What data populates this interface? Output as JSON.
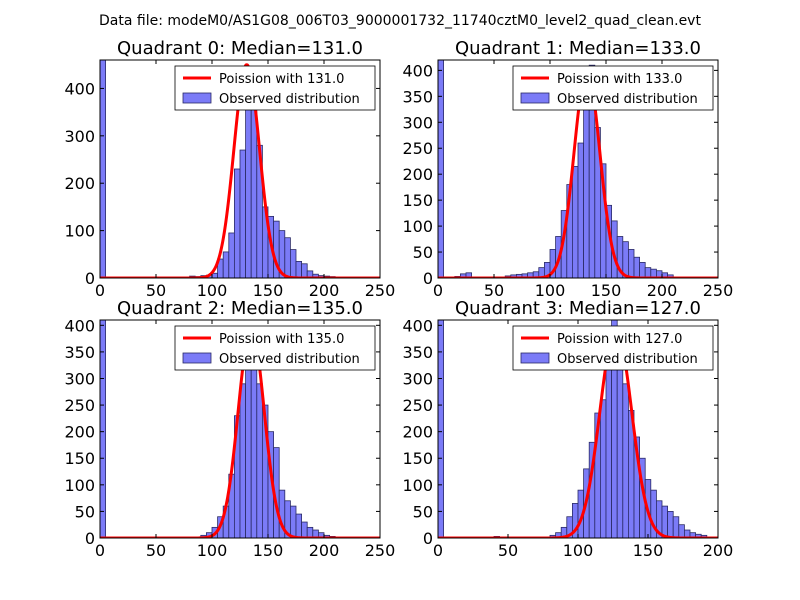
{
  "figure_title": "Data file: modeM0/AS1G08_006T03_9000001732_11740cztM0_level2_quad_clean.evt",
  "colors": {
    "bar_fill": "#7b7bf7",
    "bar_edge": "#2a2a66",
    "curve": "#ff0000",
    "background": "#ffffff"
  },
  "chart_data": [
    {
      "type": "bar",
      "title": "Quadrant 0: Median=131.0",
      "xlim": [
        0,
        250
      ],
      "ylim": [
        0,
        460
      ],
      "xticks": [
        0,
        50,
        100,
        150,
        200,
        250
      ],
      "yticks": [
        0,
        100,
        200,
        300,
        400
      ],
      "legend": [
        "Poission with 131.0",
        "Observed distribution"
      ],
      "legend_location": "upper-right",
      "bin_width": 5,
      "bins": [
        [
          0,
          460
        ],
        [
          80,
          4
        ],
        [
          85,
          3
        ],
        [
          90,
          5
        ],
        [
          95,
          6
        ],
        [
          100,
          10
        ],
        [
          105,
          40
        ],
        [
          110,
          55
        ],
        [
          115,
          95
        ],
        [
          120,
          230
        ],
        [
          125,
          270
        ],
        [
          130,
          380
        ],
        [
          135,
          420
        ],
        [
          140,
          280
        ],
        [
          145,
          150
        ],
        [
          150,
          130
        ],
        [
          155,
          120
        ],
        [
          160,
          100
        ],
        [
          165,
          85
        ],
        [
          170,
          60
        ],
        [
          175,
          35
        ],
        [
          180,
          30
        ],
        [
          185,
          15
        ],
        [
          190,
          8
        ],
        [
          195,
          5
        ],
        [
          200,
          4
        ],
        [
          205,
          3
        ],
        [
          210,
          2
        ]
      ],
      "poisson": {
        "mean": 131.0,
        "peak": 450,
        "sigma": 11.4
      }
    },
    {
      "type": "bar",
      "title": "Quadrant 1: Median=133.0",
      "xlim": [
        0,
        250
      ],
      "ylim": [
        0,
        420
      ],
      "xticks": [
        0,
        50,
        100,
        150,
        200,
        250
      ],
      "yticks": [
        0,
        50,
        100,
        150,
        200,
        250,
        300,
        350,
        400
      ],
      "legend": [
        "Poission with 133.0",
        "Observed distribution"
      ],
      "legend_location": "upper-right",
      "bin_width": 5,
      "bins": [
        [
          0,
          420
        ],
        [
          15,
          3
        ],
        [
          20,
          8
        ],
        [
          25,
          10
        ],
        [
          60,
          4
        ],
        [
          65,
          6
        ],
        [
          70,
          7
        ],
        [
          75,
          8
        ],
        [
          80,
          10
        ],
        [
          85,
          12
        ],
        [
          90,
          20
        ],
        [
          95,
          30
        ],
        [
          100,
          55
        ],
        [
          105,
          80
        ],
        [
          110,
          130
        ],
        [
          115,
          180
        ],
        [
          120,
          215
        ],
        [
          125,
          260
        ],
        [
          130,
          360
        ],
        [
          135,
          410
        ],
        [
          140,
          290
        ],
        [
          145,
          220
        ],
        [
          150,
          140
        ],
        [
          155,
          110
        ],
        [
          160,
          80
        ],
        [
          165,
          70
        ],
        [
          170,
          55
        ],
        [
          175,
          40
        ],
        [
          180,
          30
        ],
        [
          185,
          20
        ],
        [
          190,
          17
        ],
        [
          195,
          14
        ],
        [
          200,
          10
        ],
        [
          205,
          6
        ]
      ],
      "poisson": {
        "mean": 133.0,
        "peak": 400,
        "sigma": 11.5
      }
    },
    {
      "type": "bar",
      "title": "Quadrant 2: Median=135.0",
      "xlim": [
        0,
        250
      ],
      "ylim": [
        0,
        410
      ],
      "xticks": [
        0,
        50,
        100,
        150,
        200,
        250
      ],
      "yticks": [
        0,
        50,
        100,
        150,
        200,
        250,
        300,
        350,
        400
      ],
      "legend": [
        "Poission with 135.0",
        "Observed distribution"
      ],
      "legend_location": "upper-right",
      "bin_width": 5,
      "bins": [
        [
          0,
          410
        ],
        [
          90,
          5
        ],
        [
          95,
          10
        ],
        [
          100,
          20
        ],
        [
          105,
          40
        ],
        [
          110,
          60
        ],
        [
          115,
          120
        ],
        [
          120,
          230
        ],
        [
          125,
          290
        ],
        [
          130,
          350
        ],
        [
          135,
          330
        ],
        [
          140,
          290
        ],
        [
          145,
          250
        ],
        [
          150,
          200
        ],
        [
          155,
          170
        ],
        [
          160,
          90
        ],
        [
          165,
          70
        ],
        [
          170,
          60
        ],
        [
          175,
          45
        ],
        [
          180,
          30
        ],
        [
          185,
          20
        ],
        [
          190,
          15
        ],
        [
          195,
          10
        ],
        [
          200,
          5
        ],
        [
          205,
          3
        ],
        [
          210,
          2
        ]
      ],
      "poisson": {
        "mean": 135.0,
        "peak": 395,
        "sigma": 11.6
      }
    },
    {
      "type": "bar",
      "title": "Quadrant 3: Median=127.0",
      "xlim": [
        0,
        200
      ],
      "ylim": [
        0,
        410
      ],
      "xticks": [
        0,
        50,
        100,
        150,
        200
      ],
      "yticks": [
        0,
        50,
        100,
        150,
        200,
        250,
        300,
        350,
        400
      ],
      "legend": [
        "Poission with 127.0",
        "Observed distribution"
      ],
      "legend_location": "upper-right",
      "bin_width": 4,
      "bins": [
        [
          0,
          410
        ],
        [
          40,
          3
        ],
        [
          80,
          5
        ],
        [
          84,
          10
        ],
        [
          88,
          20
        ],
        [
          92,
          40
        ],
        [
          96,
          65
        ],
        [
          100,
          90
        ],
        [
          104,
          130
        ],
        [
          108,
          180
        ],
        [
          112,
          235
        ],
        [
          116,
          260
        ],
        [
          120,
          360
        ],
        [
          124,
          420
        ],
        [
          128,
          350
        ],
        [
          132,
          290
        ],
        [
          136,
          240
        ],
        [
          140,
          190
        ],
        [
          144,
          150
        ],
        [
          148,
          110
        ],
        [
          152,
          90
        ],
        [
          156,
          70
        ],
        [
          160,
          60
        ],
        [
          164,
          50
        ],
        [
          168,
          40
        ],
        [
          172,
          25
        ],
        [
          176,
          15
        ],
        [
          180,
          10
        ],
        [
          184,
          7
        ],
        [
          188,
          5
        ]
      ],
      "poisson": {
        "mean": 127.0,
        "peak": 395,
        "sigma": 11.3
      }
    }
  ]
}
